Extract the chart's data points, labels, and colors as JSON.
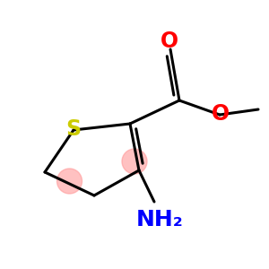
{
  "bg_color": "#ffffff",
  "s_color": "#cccc00",
  "o_color": "#ff0000",
  "n_color": "#0000ff",
  "bond_color": "#000000",
  "highlight_color": "#ff9999",
  "highlight_alpha": 0.6,
  "s_label": "S",
  "o_label1": "O",
  "o_label2": "O",
  "n_label": "NH₂",
  "font_size_s": 17,
  "font_size_o": 17,
  "font_size_nh2": 18,
  "line_width": 2.2
}
